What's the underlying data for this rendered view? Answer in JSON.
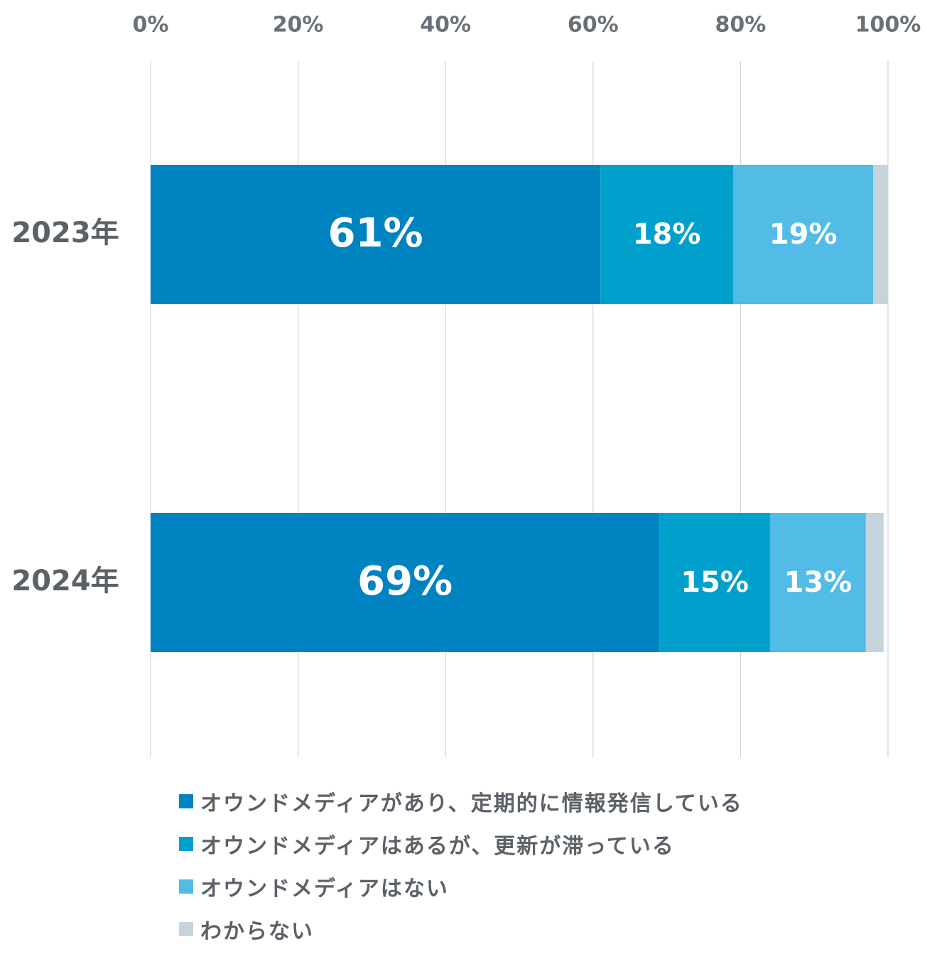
{
  "chart_data": {
    "type": "bar",
    "orientation": "horizontal",
    "stacked": true,
    "categories": [
      "2023年",
      "2024年"
    ],
    "series": [
      {
        "name": "オウンドメディアがあり、定期的に情報発信している",
        "values": [
          61,
          69
        ],
        "labels": [
          "61%",
          "69%"
        ],
        "color": "#0083c1"
      },
      {
        "name": "オウンドメディアはあるが、更新が滞っている",
        "values": [
          18,
          15
        ],
        "labels": [
          "18%",
          "15%"
        ],
        "color": "#009fcc"
      },
      {
        "name": "オウンドメディアはない",
        "values": [
          19,
          13
        ],
        "labels": [
          "19%",
          "13%"
        ],
        "color": "#52bce6"
      },
      {
        "name": "わからない",
        "values": [
          2.5,
          2.4
        ],
        "labels": [
          "",
          ""
        ],
        "color": "#c5d4dc"
      }
    ],
    "x_ticks": [
      "0%",
      "20%",
      "40%",
      "60%",
      "80%",
      "100%"
    ],
    "xlim": [
      0,
      100
    ],
    "grid": "vertical",
    "legend_position": "bottom"
  },
  "colors": {
    "gridline": "#d4d4d4",
    "tick_text": "#6a7075",
    "category_text": "#5b6167",
    "legend_text": "#5b6167"
  }
}
